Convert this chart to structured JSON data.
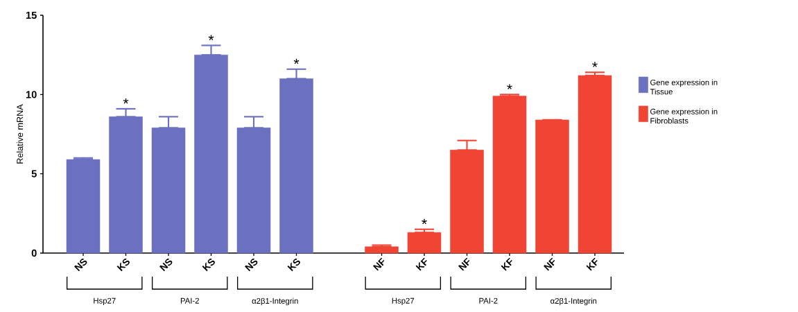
{
  "chart_data": {
    "type": "bar",
    "ylabel": "Relative mRNA",
    "categories": [
      "NS",
      "KS",
      "NS",
      "KS",
      "NS",
      "KS",
      null,
      "NF",
      "KF",
      "NF",
      "KF",
      "NF",
      "KF"
    ],
    "series": [
      {
        "name": "Gene expression in Tissue",
        "color": "#6b70c0",
        "values": [
          5.9,
          8.6,
          7.9,
          12.5,
          7.9,
          11.0,
          null,
          null,
          null,
          null,
          null,
          null,
          null
        ],
        "errors": [
          [
            5.9,
            6.0
          ],
          [
            8.6,
            9.1
          ],
          [
            7.9,
            8.6
          ],
          [
            12.5,
            13.1
          ],
          [
            7.9,
            8.6
          ],
          [
            11.0,
            11.6
          ],
          null,
          null,
          null,
          null,
          null,
          null,
          null
        ],
        "value_labels": [
          null,
          "*",
          null,
          "*",
          null,
          "*",
          null,
          null,
          null,
          null,
          null,
          null,
          null
        ]
      },
      {
        "name": "Gene expression in Fibroblasts",
        "color": "#f04535",
        "values": [
          null,
          null,
          null,
          null,
          null,
          null,
          null,
          0.4,
          1.3,
          6.5,
          9.9,
          8.4,
          11.2
        ],
        "errors": [
          null,
          null,
          null,
          null,
          null,
          null,
          null,
          [
            0.4,
            0.5
          ],
          [
            1.3,
            1.5
          ],
          [
            6.5,
            7.1
          ],
          [
            9.9,
            10.0
          ],
          null,
          [
            11.2,
            11.4
          ]
        ],
        "value_labels": [
          null,
          null,
          null,
          null,
          null,
          null,
          null,
          null,
          "*",
          null,
          "*",
          null,
          "*"
        ]
      }
    ],
    "annotations": [
      "Hsp27",
      "PAI-2",
      "α2β1-Integrin",
      "Hsp27",
      "PAI-2",
      "α2β1-Integrin"
    ],
    "ylim": [
      0,
      15
    ],
    "yticks": [
      0,
      5,
      10,
      15
    ],
    "legend": "right"
  }
}
